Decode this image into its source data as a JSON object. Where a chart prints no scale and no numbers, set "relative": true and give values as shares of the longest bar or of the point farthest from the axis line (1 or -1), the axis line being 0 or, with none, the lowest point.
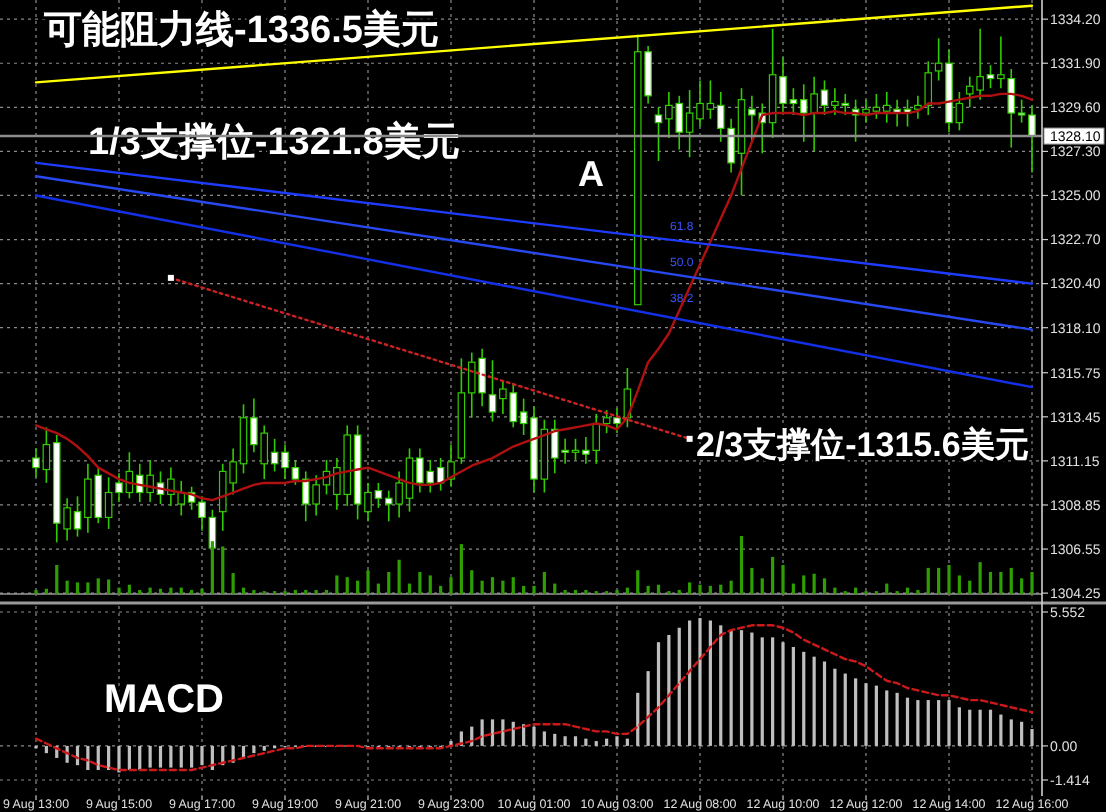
{
  "chart_data": [
    {
      "type": "candlestick",
      "categories": [
        "9 Aug 13:00",
        null,
        null,
        null,
        null,
        null,
        null,
        null,
        "9 Aug 15:00",
        null,
        null,
        null,
        null,
        null,
        null,
        null,
        "9 Aug 17:00",
        null,
        null,
        null,
        null,
        null,
        null,
        null,
        "9 Aug 19:00",
        null,
        null,
        null,
        null,
        null,
        null,
        null,
        "9 Aug 21:00",
        null,
        null,
        null,
        null,
        null,
        null,
        null,
        "9 Aug 23:00",
        null,
        null,
        null,
        null,
        null,
        null,
        null,
        "10 Aug 01:00",
        null,
        null,
        null,
        null,
        null,
        null,
        null,
        "10 Aug 03:00",
        null,
        null,
        null,
        null,
        null,
        null,
        null,
        "12 Aug 08:00",
        null,
        null,
        null,
        null,
        null,
        null,
        null,
        "12 Aug 10:00",
        null,
        null,
        null,
        null,
        null,
        null,
        null,
        "12 Aug 12:00",
        null,
        null,
        null,
        null,
        null,
        null,
        null,
        "12 Aug 14:00",
        null,
        null,
        null,
        null,
        null,
        null,
        null,
        "12 Aug 16:00"
      ],
      "series": [
        {
          "type": "candlestick",
          "color": "#33cc00",
          "ohlc": [
            [
              1311.3,
              1311.8,
              1310.3,
              1310.8
            ],
            [
              1310.7,
              1312.9,
              1310.0,
              1312.0
            ],
            [
              1312.1,
              1312.5,
              1306.9,
              1307.9
            ],
            [
              1307.6,
              1309.2,
              1307.0,
              1308.7
            ],
            [
              1308.5,
              1309.3,
              1307.2,
              1307.6
            ],
            [
              1308.2,
              1311.0,
              1307.4,
              1310.2
            ],
            [
              1310.4,
              1310.8,
              1307.9,
              1308.2
            ],
            [
              1308.2,
              1310.3,
              1307.6,
              1309.5
            ],
            [
              1310.0,
              1310.5,
              1309.0,
              1309.5
            ],
            [
              1309.5,
              1311.6,
              1309.2,
              1310.6
            ],
            [
              1310.4,
              1311.0,
              1309.0,
              1309.5
            ],
            [
              1309.5,
              1311.2,
              1309.0,
              1310.4
            ],
            [
              1310.0,
              1310.6,
              1308.9,
              1309.4
            ],
            [
              1309.4,
              1310.8,
              1308.8,
              1310.2
            ],
            [
              1308.9,
              1310.1,
              1308.3,
              1309.5
            ],
            [
              1309.5,
              1309.8,
              1308.6,
              1309.0
            ],
            [
              1309.0,
              1309.3,
              1307.5,
              1308.2
            ],
            [
              1308.2,
              1308.6,
              1305.9,
              1306.6
            ],
            [
              1308.5,
              1311.0,
              1307.5,
              1310.6
            ],
            [
              1310.0,
              1311.8,
              1309.4,
              1311.1
            ],
            [
              1311.0,
              1314.1,
              1310.5,
              1313.4
            ],
            [
              1313.4,
              1314.4,
              1311.6,
              1312.0
            ],
            [
              1311.0,
              1313.0,
              1310.2,
              1312.6
            ],
            [
              1311.6,
              1312.3,
              1310.6,
              1311.0
            ],
            [
              1311.6,
              1312.0,
              1310.2,
              1310.8
            ],
            [
              1310.8,
              1311.2,
              1309.9,
              1310.2
            ],
            [
              1310.2,
              1310.6,
              1308.0,
              1308.9
            ],
            [
              1308.9,
              1310.4,
              1308.3,
              1309.9
            ],
            [
              1309.9,
              1311.2,
              1309.4,
              1310.6
            ],
            [
              1309.4,
              1311.3,
              1308.6,
              1310.8
            ],
            [
              1309.4,
              1313.0,
              1308.8,
              1312.5
            ],
            [
              1312.5,
              1313.0,
              1308.1,
              1308.9
            ],
            [
              1308.5,
              1310.0,
              1308.0,
              1309.5
            ],
            [
              1309.6,
              1310.0,
              1308.7,
              1309.2
            ],
            [
              1309.2,
              1309.6,
              1308.0,
              1308.9
            ],
            [
              1308.9,
              1310.6,
              1308.2,
              1310.0
            ],
            [
              1309.2,
              1311.8,
              1308.5,
              1311.3
            ],
            [
              1311.3,
              1311.8,
              1309.5,
              1310.0
            ],
            [
              1310.6,
              1311.2,
              1309.5,
              1310.0
            ],
            [
              1310.8,
              1311.3,
              1309.6,
              1310.0
            ],
            [
              1310.2,
              1312.0,
              1309.8,
              1311.1
            ],
            [
              1311.3,
              1316.5,
              1311.0,
              1314.7
            ],
            [
              1314.7,
              1316.8,
              1313.4,
              1316.3
            ],
            [
              1316.5,
              1317.0,
              1314.0,
              1314.7
            ],
            [
              1314.6,
              1316.4,
              1313.2,
              1313.7
            ],
            [
              1314.4,
              1315.3,
              1313.6,
              1314.9
            ],
            [
              1314.7,
              1315.2,
              1312.9,
              1313.2
            ],
            [
              1313.7,
              1314.4,
              1312.5,
              1313.1
            ],
            [
              1313.4,
              1314.0,
              1309.5,
              1310.2
            ],
            [
              1310.2,
              1313.3,
              1309.5,
              1312.8
            ],
            [
              1312.8,
              1313.3,
              1310.5,
              1311.3
            ],
            [
              1311.7,
              1312.3,
              1311.0,
              1311.6
            ],
            [
              1311.6,
              1312.3,
              1311.2,
              1311.7
            ],
            [
              1311.7,
              1312.4,
              1311.0,
              1311.5
            ],
            [
              1311.7,
              1313.6,
              1311.0,
              1313.1
            ],
            [
              1313.1,
              1313.8,
              1312.6,
              1313.4
            ],
            [
              1313.4,
              1313.9,
              1312.6,
              1313.1
            ],
            [
              1313.4,
              1316.0,
              1312.9,
              1314.9
            ],
            [
              1319.3,
              1333.4,
              1319.3,
              1332.5
            ],
            [
              1332.5,
              1332.8,
              1329.8,
              1330.2
            ],
            [
              1329.2,
              1329.6,
              1326.8,
              1328.8
            ],
            [
              1329.0,
              1330.4,
              1328.0,
              1329.7
            ],
            [
              1329.8,
              1330.2,
              1327.4,
              1328.3
            ],
            [
              1328.3,
              1330.5,
              1327.0,
              1329.3
            ],
            [
              1329.0,
              1331.0,
              1328.6,
              1329.8
            ],
            [
              1329.5,
              1331.0,
              1329.0,
              1329.8
            ],
            [
              1329.7,
              1330.4,
              1327.8,
              1328.5
            ],
            [
              1328.5,
              1329.0,
              1326.2,
              1326.7
            ],
            [
              1327.2,
              1330.6,
              1325.0,
              1330.0
            ],
            [
              1329.5,
              1330.2,
              1327.8,
              1329.2
            ],
            [
              1329.3,
              1329.8,
              1327.2,
              1328.8
            ],
            [
              1328.8,
              1333.7,
              1328.0,
              1331.3
            ],
            [
              1331.2,
              1332.2,
              1329.3,
              1329.8
            ],
            [
              1330.0,
              1330.6,
              1329.2,
              1329.8
            ],
            [
              1330.0,
              1330.8,
              1327.8,
              1329.3
            ],
            [
              1329.3,
              1331.2,
              1327.3,
              1330.3
            ],
            [
              1330.5,
              1331.0,
              1329.2,
              1329.7
            ],
            [
              1329.7,
              1330.6,
              1329.2,
              1329.9
            ],
            [
              1329.8,
              1330.3,
              1329.2,
              1329.7
            ],
            [
              1329.5,
              1330.0,
              1327.8,
              1329.2
            ],
            [
              1329.3,
              1330.0,
              1328.8,
              1329.5
            ],
            [
              1329.4,
              1330.3,
              1329.0,
              1329.6
            ],
            [
              1329.4,
              1330.4,
              1328.8,
              1329.7
            ],
            [
              1329.5,
              1330.0,
              1328.6,
              1329.3
            ],
            [
              1329.5,
              1330.0,
              1328.6,
              1329.3
            ],
            [
              1329.5,
              1330.2,
              1329.0,
              1329.7
            ],
            [
              1329.7,
              1332.0,
              1329.2,
              1331.4
            ],
            [
              1331.5,
              1333.2,
              1331.0,
              1331.9
            ],
            [
              1331.9,
              1332.6,
              1328.3,
              1328.8
            ],
            [
              1328.8,
              1330.4,
              1328.4,
              1329.8
            ],
            [
              1330.3,
              1331.2,
              1329.6,
              1330.7
            ],
            [
              1330.5,
              1333.7,
              1330.0,
              1331.2
            ],
            [
              1331.3,
              1331.8,
              1330.6,
              1331.1
            ],
            [
              1331.1,
              1333.3,
              1330.6,
              1331.3
            ],
            [
              1331.1,
              1331.6,
              1327.5,
              1329.3
            ],
            [
              1329.3,
              1330.0,
              1328.8,
              1329.2
            ],
            [
              1329.2,
              1329.7,
              1326.2,
              1328.1
            ]
          ]
        },
        {
          "type": "line",
          "color": "#b01010",
          "values": [
            1313.0,
            1312.8,
            1312.6,
            1312.3,
            1311.9,
            1311.4,
            1310.8,
            1310.5,
            1310.2,
            1310.0,
            1309.9,
            1309.8,
            1309.7,
            1309.6,
            1309.5,
            1309.4,
            1309.2,
            1309.1,
            1309.3,
            1309.5,
            1309.7,
            1309.9,
            1310.0,
            1310.0,
            1310.0,
            1310.1,
            1310.1,
            1310.2,
            1310.3,
            1310.5,
            1310.6,
            1310.7,
            1310.8,
            1310.6,
            1310.4,
            1310.2,
            1310.0,
            1309.9,
            1309.9,
            1310.0,
            1310.3,
            1310.6,
            1310.9,
            1311.1,
            1311.3,
            1311.6,
            1311.9,
            1312.1,
            1312.3,
            1312.5,
            1312.7,
            1312.8,
            1312.9,
            1313.0,
            1313.1,
            1313.0,
            1312.8,
            1313.4,
            1314.8,
            1316.3,
            1317.0,
            1317.8,
            1319.0,
            1320.2,
            1321.4,
            1322.6,
            1323.8,
            1325.0,
            1326.4,
            1327.8,
            1329.2,
            1329.3,
            1329.3,
            1329.3,
            1329.2,
            1329.3,
            1329.3,
            1329.4,
            1329.3,
            1329.3,
            1329.2,
            1329.3,
            1329.3,
            1329.3,
            1329.3,
            1329.4,
            1329.8,
            1329.8,
            1329.9,
            1330.0,
            1330.1,
            1330.2,
            1330.2,
            1330.3,
            1330.3,
            1330.2,
            1330.0
          ]
        },
        {
          "type": "line",
          "color": "#ffff00",
          "x": [
            "9 Aug 13:00",
            "12 Aug 16:00"
          ],
          "values": [
            1330.9,
            1334.9
          ]
        },
        {
          "type": "line",
          "color": "#1e3cff",
          "x": [
            "9 Aug 13:00",
            "12 Aug 16:00"
          ],
          "values": [
            1326.7,
            1320.4
          ]
        },
        {
          "type": "line",
          "color": "#2848f0",
          "x": [
            "9 Aug 13:00",
            "12 Aug 16:00"
          ],
          "values": [
            1326.0,
            1318.0
          ]
        },
        {
          "type": "line",
          "color": "#1430e6",
          "x": [
            "9 Aug 13:00",
            "12 Aug 16:00"
          ],
          "values": [
            1325.0,
            1315.0
          ]
        },
        {
          "type": "line",
          "color": "#cc2222",
          "line_style": "dotted",
          "marker": "square",
          "values": [
            null,
            null,
            null,
            null,
            null,
            null,
            null,
            null,
            null,
            null,
            null,
            null,
            null,
            1320.7,
            null,
            null,
            null,
            null,
            null,
            null,
            null,
            null,
            null,
            null,
            null,
            null,
            null,
            null,
            null,
            null,
            null,
            null,
            null,
            null,
            null,
            null,
            null,
            null,
            null,
            null,
            null,
            null,
            null,
            null,
            null,
            null,
            null,
            null,
            null,
            null,
            null,
            null,
            null,
            null,
            null,
            null,
            null,
            null,
            null,
            null,
            null,
            null,
            null,
            1312.3,
            null,
            null,
            null,
            null,
            null,
            null,
            null,
            null,
            null,
            null,
            null,
            null,
            null,
            null,
            null,
            null,
            null,
            null,
            null,
            null,
            null,
            null,
            null,
            null,
            null,
            null,
            null,
            null,
            null,
            null,
            null,
            null,
            null
          ]
        }
      ],
      "ylim": [
        1304.1,
        1335.2
      ],
      "yticks": [
        {
          "value": 1334.2,
          "label": "1334.20"
        },
        {
          "value": 1331.9,
          "label": "1331.90"
        },
        {
          "value": 1329.6,
          "label": "1329.60"
        },
        {
          "value": 1327.3,
          "label": "1327.30"
        },
        {
          "value": 1325,
          "label": "1325.00"
        },
        {
          "value": 1322.7,
          "label": "1322.70"
        },
        {
          "value": 1320.4,
          "label": "1320.40"
        },
        {
          "value": 1318.1,
          "label": "1318.10"
        },
        {
          "value": 1315.75,
          "label": "1315.75"
        },
        {
          "value": 1313.45,
          "label": "1313.45"
        },
        {
          "value": 1311.15,
          "label": "1311.15"
        },
        {
          "value": 1308.85,
          "label": "1308.85"
        },
        {
          "value": 1306.55,
          "label": "1306.55"
        },
        {
          "value": 1304.25,
          "label": "1304.25"
        }
      ],
      "grid": true,
      "tick_labels": "y",
      "ref_lines": [
        {
          "axis": "y",
          "value": 1328.1,
          "label": "1328.10",
          "color": "#8c8c8c"
        }
      ],
      "annotations": [
        "可能阻力线-1336.5美元",
        "1/3支撑位-1321.8美元",
        "2/3支撑位-1315.6美元",
        "A",
        "61.8",
        "50.0",
        "38.2"
      ]
    },
    {
      "type": "bar",
      "relative": true,
      "tick_labels": false,
      "color": "#2f9e00",
      "categories": [
        "9 Aug 13:00",
        null,
        null,
        null,
        null,
        null,
        null,
        null,
        "9 Aug 15:00",
        null,
        null,
        null,
        null,
        null,
        null,
        null,
        "9 Aug 17:00",
        null,
        null,
        null,
        null,
        null,
        null,
        null,
        "9 Aug 19:00",
        null,
        null,
        null,
        null,
        null,
        null,
        null,
        "9 Aug 21:00",
        null,
        null,
        null,
        null,
        null,
        null,
        null,
        "9 Aug 23:00",
        null,
        null,
        null,
        null,
        null,
        null,
        null,
        "10 Aug 01:00",
        null,
        null,
        null,
        null,
        null,
        null,
        null,
        "10 Aug 03:00",
        null,
        null,
        null,
        null,
        null,
        null,
        null,
        "12 Aug 08:00",
        null,
        null,
        null,
        null,
        null,
        null,
        null,
        "12 Aug 10:00",
        null,
        null,
        null,
        null,
        null,
        null,
        null,
        "12 Aug 12:00",
        null,
        null,
        null,
        null,
        null,
        null,
        null,
        "12 Aug 14:00",
        null,
        null,
        null,
        null,
        null,
        null,
        null,
        "12 Aug 16:00"
      ],
      "values": [
        0.07,
        0.09,
        0.5,
        0.23,
        0.2,
        0.2,
        0.27,
        0.25,
        0.11,
        0.16,
        0.07,
        0.11,
        0.09,
        0.11,
        0.11,
        0.07,
        0.09,
        0.91,
        0.82,
        0.36,
        0.11,
        0.07,
        0.05,
        0.05,
        0.05,
        0.07,
        0.07,
        0.07,
        0.07,
        0.32,
        0.29,
        0.23,
        0.41,
        0.18,
        0.38,
        0.59,
        0.18,
        0.38,
        0.32,
        0.14,
        0.29,
        0.86,
        0.41,
        0.23,
        0.29,
        0.23,
        0.29,
        0.14,
        0.14,
        0.38,
        0.18,
        0.07,
        0.07,
        0.07,
        0.05,
        0.05,
        0.07,
        0.11,
        0.41,
        0.14,
        0.16,
        0.05,
        0.07,
        0.2,
        0.16,
        0.14,
        0.16,
        0.23,
        1,
        0.45,
        0.27,
        0.64,
        0.5,
        0.18,
        0.32,
        0.35,
        0.27,
        0.11,
        0.05,
        0.11,
        0.05,
        0.05,
        0.18,
        0.05,
        0.11,
        0.07,
        0.45,
        0.45,
        0.5,
        0.32,
        0.23,
        0.55,
        0.38,
        0.38,
        0.45,
        0.27,
        0.38
      ]
    },
    {
      "type": "bar",
      "title": "MACD",
      "categories": [
        "9 Aug 13:00",
        null,
        null,
        null,
        null,
        null,
        null,
        null,
        "9 Aug 15:00",
        null,
        null,
        null,
        null,
        null,
        null,
        null,
        "9 Aug 17:00",
        null,
        null,
        null,
        null,
        null,
        null,
        null,
        "9 Aug 19:00",
        null,
        null,
        null,
        null,
        null,
        null,
        null,
        "9 Aug 21:00",
        null,
        null,
        null,
        null,
        null,
        null,
        null,
        "9 Aug 23:00",
        null,
        null,
        null,
        null,
        null,
        null,
        null,
        "10 Aug 01:00",
        null,
        null,
        null,
        null,
        null,
        null,
        null,
        "10 Aug 03:00",
        null,
        null,
        null,
        null,
        null,
        null,
        null,
        "12 Aug 08:00",
        null,
        null,
        null,
        null,
        null,
        null,
        null,
        "12 Aug 10:00",
        null,
        null,
        null,
        null,
        null,
        null,
        null,
        "12 Aug 12:00",
        null,
        null,
        null,
        null,
        null,
        null,
        null,
        "12 Aug 14:00",
        null,
        null,
        null,
        null,
        null,
        null,
        null,
        "12 Aug 16:00"
      ],
      "series": [
        {
          "type": "bar",
          "color": "#bfbfbf",
          "values": [
            -0.1,
            -0.3,
            -0.5,
            -0.7,
            -0.8,
            -1.0,
            -1.0,
            -1.0,
            -1.1,
            -1.0,
            -1.0,
            -0.9,
            -0.9,
            -0.9,
            -0.9,
            -0.9,
            -0.8,
            -1.0,
            -0.8,
            -0.7,
            -0.5,
            -0.3,
            -0.2,
            -0.1,
            0,
            0,
            0,
            0,
            0,
            0,
            0,
            0,
            0,
            0,
            0,
            0,
            0,
            0,
            0,
            0,
            0.2,
            0.6,
            0.8,
            1.1,
            1.1,
            1.1,
            1.0,
            0.9,
            0.8,
            0.6,
            0.5,
            0.4,
            0.4,
            0.3,
            0.2,
            0.3,
            0.4,
            0.3,
            2.2,
            3.1,
            4.3,
            4.6,
            4.9,
            5.2,
            5.3,
            5.2,
            5.0,
            4.8,
            4.8,
            4.7,
            4.5,
            4.5,
            4.3,
            4.1,
            3.9,
            3.7,
            3.5,
            3.2,
            3.0,
            2.8,
            2.6,
            2.5,
            2.3,
            2.2,
            2.0,
            1.9,
            1.9,
            1.9,
            1.9,
            1.6,
            1.5,
            1.5,
            1.5,
            1.3,
            1.1,
            1.0,
            0.7
          ]
        },
        {
          "type": "line",
          "color": "#cc1a1a",
          "line_style": "dashed",
          "values": [
            0.3,
            0.1,
            -0.1,
            -0.3,
            -0.5,
            -0.6,
            -0.8,
            -0.9,
            -1.0,
            -1.0,
            -1.0,
            -1.0,
            -1.0,
            -1.0,
            -1.0,
            -1.0,
            -0.9,
            -0.8,
            -0.7,
            -0.6,
            -0.5,
            -0.4,
            -0.3,
            -0.2,
            -0.1,
            -0.1,
            0,
            0,
            0,
            0,
            0,
            0,
            -0.1,
            -0.1,
            -0.1,
            -0.1,
            -0.1,
            -0.1,
            -0.1,
            -0.1,
            0,
            0.1,
            0.2,
            0.4,
            0.5,
            0.6,
            0.7,
            0.8,
            0.9,
            0.9,
            0.9,
            0.9,
            0.8,
            0.7,
            0.6,
            0.6,
            0.5,
            0.5,
            0.8,
            1.2,
            1.6,
            2.1,
            2.6,
            3.1,
            3.6,
            4.1,
            4.6,
            4.8,
            4.9,
            5.0,
            5.0,
            5.0,
            4.9,
            4.7,
            4.4,
            4.2,
            4.0,
            3.8,
            3.6,
            3.5,
            3.3,
            3.0,
            2.7,
            2.6,
            2.4,
            2.3,
            2.2,
            2.1,
            2.1,
            2.0,
            1.9,
            1.9,
            1.8,
            1.7,
            1.6,
            1.5,
            1.4
          ]
        }
      ],
      "ylim": [
        -1.414,
        5.552
      ],
      "yticks": [
        5.552,
        {
          "value": 0,
          "label": "0.00"
        },
        -1.414
      ],
      "grid": true
    }
  ]
}
